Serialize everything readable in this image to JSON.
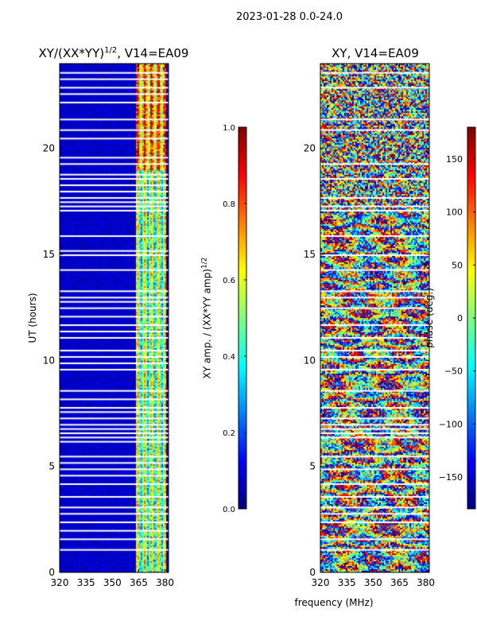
{
  "figure": {
    "suptitle": "2023-01-28 0.0-24.0",
    "xlabel": "frequency (MHz)"
  },
  "colors": {
    "jet": [
      "#00007f",
      "#0000ff",
      "#007fff",
      "#00ffff",
      "#7fff7f",
      "#ffff00",
      "#ff7f00",
      "#ff0000",
      "#7f0000"
    ]
  },
  "chart_data": [
    {
      "type": "heatmap",
      "title": "XY/(XX*YY)",
      "title_sup": "1/2",
      "title_suffix": ", V14=EA09",
      "ylabel": "UT (hours)",
      "xlim": [
        320,
        382
      ],
      "ylim": [
        0,
        24
      ],
      "xticks": [
        320,
        335,
        350,
        365,
        380
      ],
      "yticks": [
        0,
        5,
        10,
        15,
        20
      ],
      "features": [
        {
          "x0": 363,
          "x1": 380,
          "y0": 0,
          "y1": 24,
          "value": 0.5
        },
        {
          "x0": 363,
          "x1": 380,
          "y0": 19,
          "y1": 24,
          "value": 0.72
        }
      ],
      "background_value": 0.07,
      "gaps_hours": [
        23.6,
        23.3,
        22.9,
        22.6,
        22.2,
        21.4,
        20.9,
        20.5,
        19.6,
        19.3,
        18.8,
        18.6,
        18.3,
        18.0,
        17.7,
        17.5,
        17.3,
        17.1,
        15.9,
        15.2,
        15.0,
        14.3,
        13.3,
        13.0,
        12.8,
        12.5,
        12.1,
        11.7,
        11.4,
        11.1,
        10.5,
        10.2,
        9.9,
        9.6,
        8.6,
        8.2,
        7.8,
        7.6,
        7.3,
        7.0,
        6.8,
        6.6,
        6.4,
        6.2,
        5.5,
        5.2,
        4.9,
        4.6,
        4.2,
        3.6,
        3.1,
        2.8,
        2.4,
        2.0,
        1.6,
        1.1
      ],
      "colorbar": {
        "label": "XY amp. / (XX*YY amp)",
        "label_sup": "1/2",
        "min": 0.0,
        "max": 1.0,
        "ticks": [
          "0.0",
          "0.2",
          "0.4",
          "0.6",
          "0.8",
          "1.0"
        ],
        "tick_values": [
          0.0,
          0.2,
          0.4,
          0.6,
          0.8,
          1.0
        ]
      }
    },
    {
      "type": "heatmap",
      "title": "XY, V14=EA09",
      "xlim": [
        320,
        382
      ],
      "ylim": [
        0,
        24
      ],
      "xticks": [
        320,
        335,
        350,
        365,
        380
      ],
      "yticks": [
        0,
        5,
        10,
        15,
        20
      ],
      "gaps_hours": [
        23.6,
        22.9,
        21.4,
        20.9,
        19.3,
        18.6,
        17.7,
        17.3,
        17.1,
        15.9,
        15.0,
        14.3,
        13.3,
        13.0,
        12.5,
        11.7,
        11.1,
        10.5,
        10.2,
        9.6,
        8.6,
        7.8,
        7.3,
        7.0,
        6.8,
        6.6,
        6.4,
        5.5,
        4.9,
        4.2,
        3.6,
        3.1,
        2.8,
        2.4,
        1.6,
        1.1
      ],
      "colorbar": {
        "label": "phase (deg.)",
        "min": -180,
        "max": 180,
        "ticks": [
          "150",
          "100",
          "50",
          "0",
          "−50",
          "−100",
          "−150"
        ],
        "tick_values": [
          150,
          100,
          50,
          0,
          -50,
          -100,
          -150
        ]
      }
    }
  ]
}
